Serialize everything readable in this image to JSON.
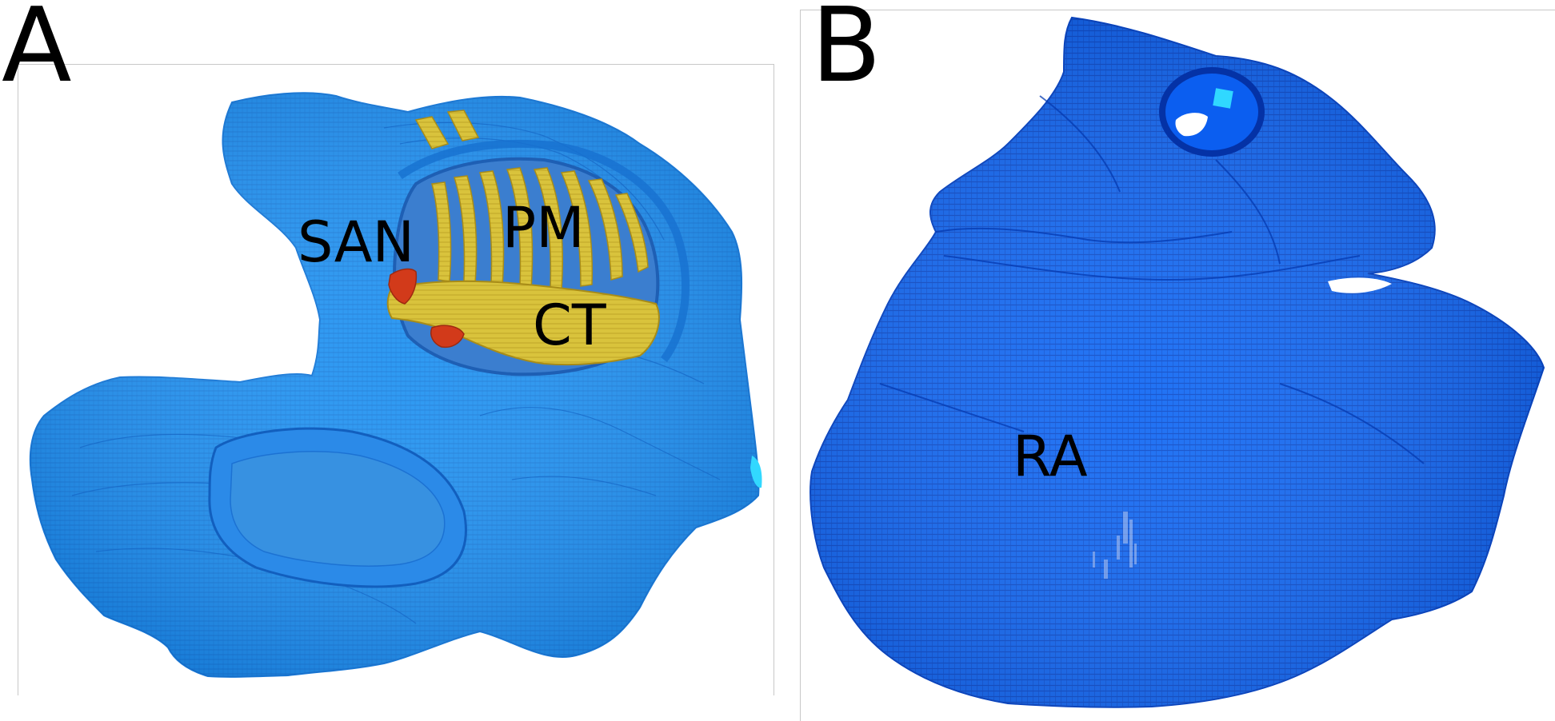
{
  "panels": [
    {
      "letter": "A",
      "labels": {
        "san": "SAN",
        "pm": "PM",
        "ct": "CT"
      }
    },
    {
      "letter": "B",
      "labels": {
        "ra": "RA"
      }
    }
  ],
  "colors": {
    "tissue_a": "#1f8ff0",
    "tissue_a_dark": "#1470d0",
    "tissue_b": "#0a5ff2",
    "tissue_b_dark": "#0645c8",
    "muscle_yellow": "#d8c23a",
    "node_red": "#d43a1a",
    "cyan_highlight": "#30e0ff"
  }
}
